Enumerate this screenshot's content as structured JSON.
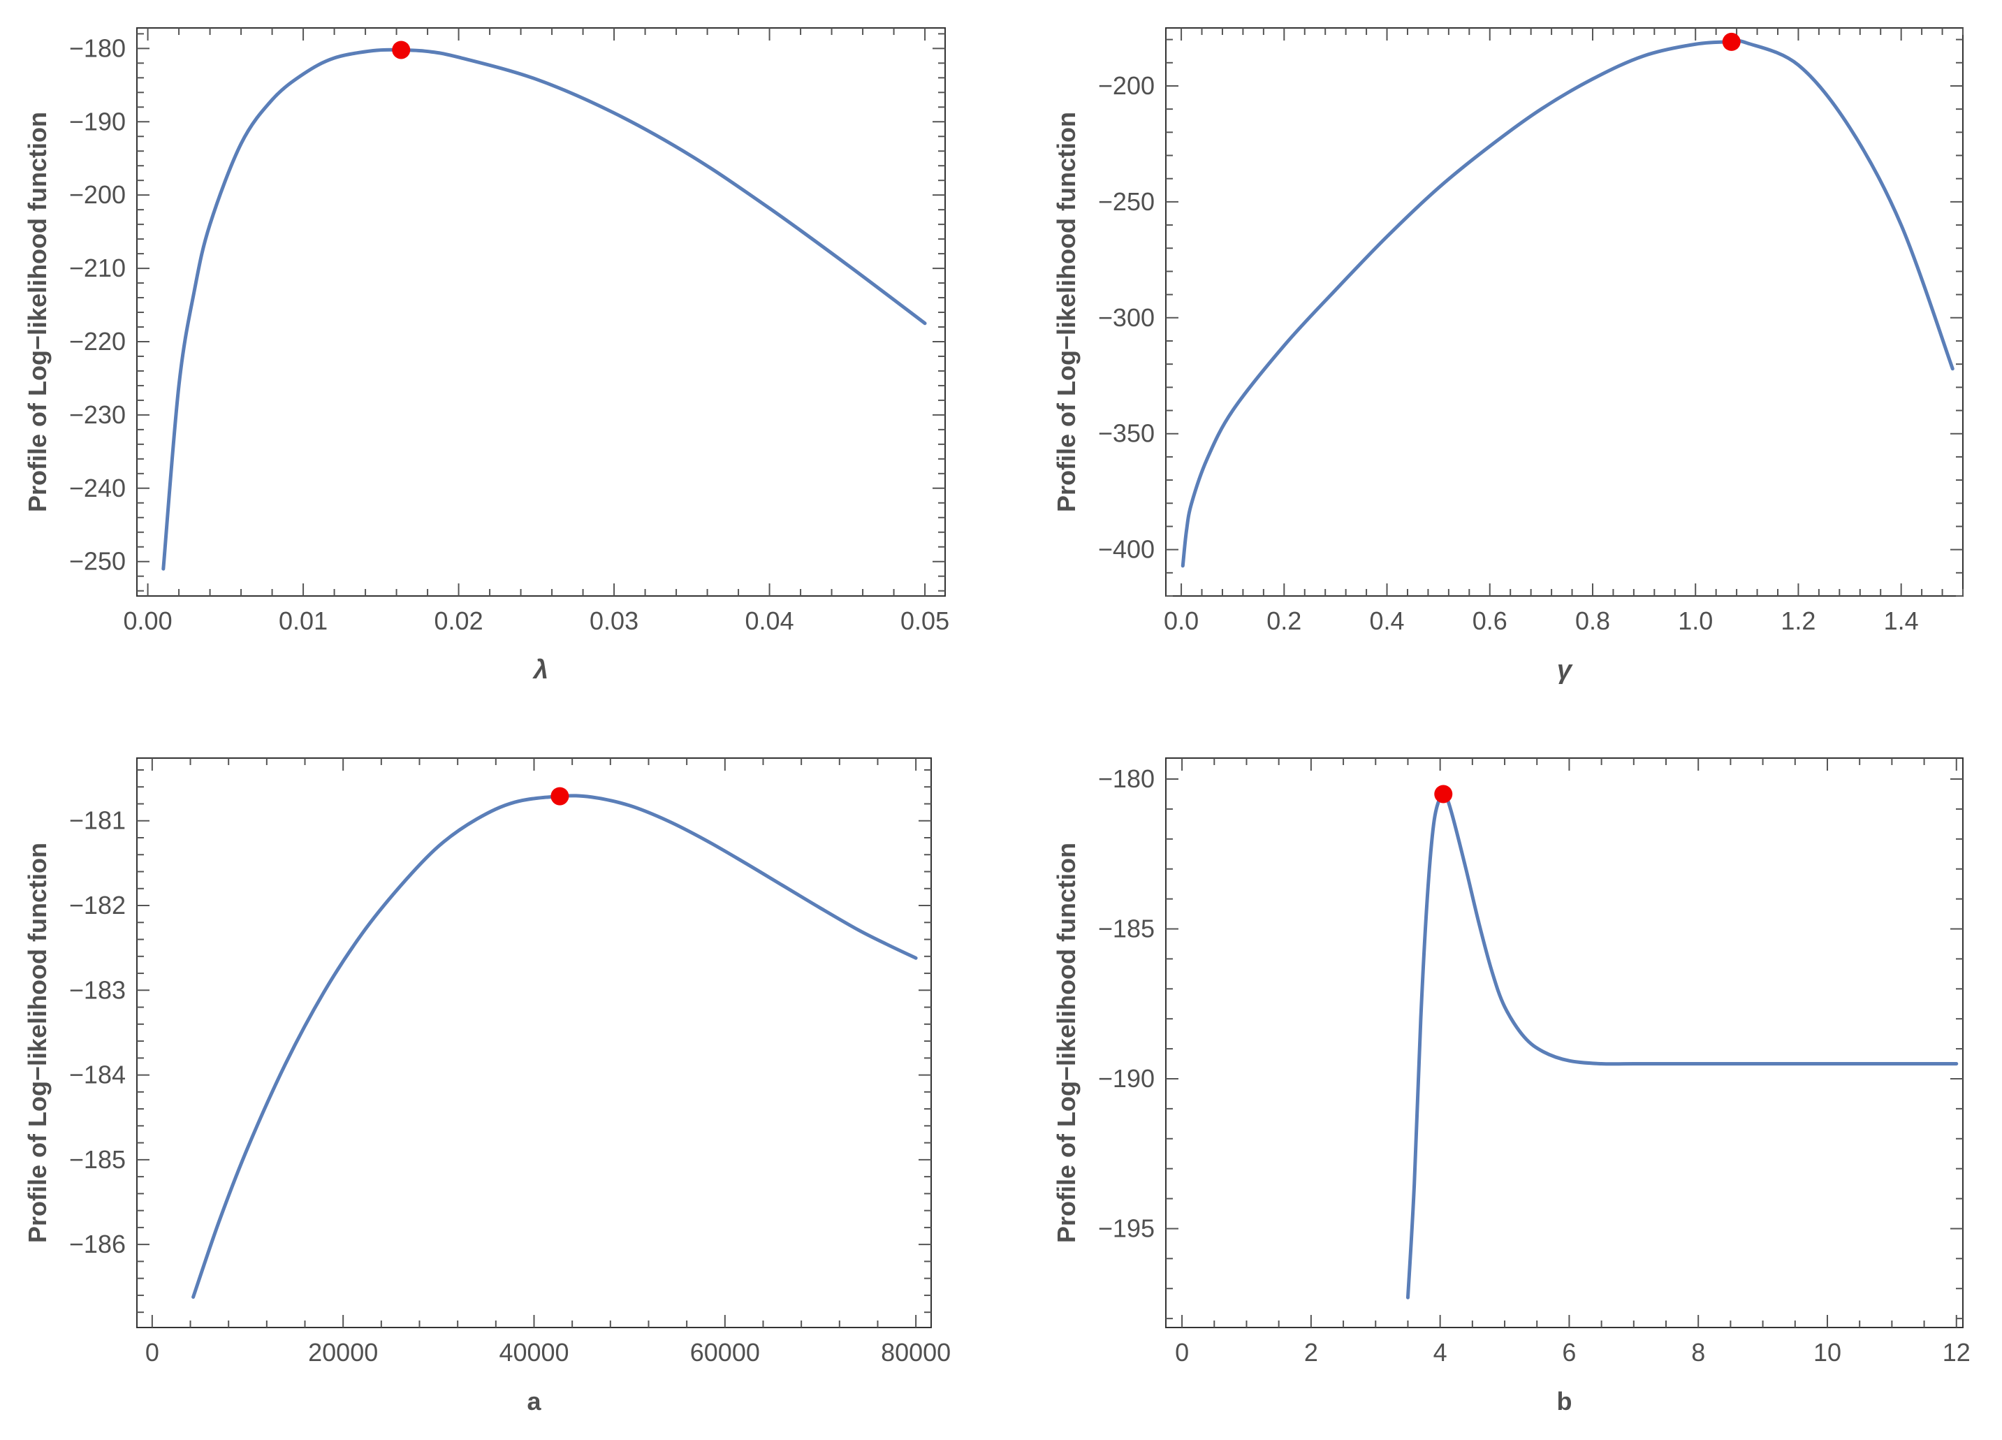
{
  "colors": {
    "curve": "#5A7EB8",
    "marker": "#F00000",
    "frame": "#333333",
    "text": "#505050"
  },
  "chart_data": [
    {
      "type": "line",
      "xlabel": "λ",
      "ylabel": "Profile of Log-likelihood function",
      "x_ticks": [
        "0.00",
        "0.01",
        "0.02",
        "0.03",
        "0.04",
        "0.05"
      ],
      "y_ticks": [
        "-180",
        "-190",
        "-200",
        "-210",
        "-220",
        "-230",
        "-240",
        "-250"
      ],
      "xlim": [
        -0.0007,
        0.0513
      ],
      "ylim": [
        -254.7,
        -177.2
      ],
      "x_tick_values": [
        0,
        0.01,
        0.02,
        0.03,
        0.04,
        0.05
      ],
      "y_tick_values": [
        -180,
        -190,
        -200,
        -210,
        -220,
        -230,
        -240,
        -250
      ],
      "x_minor": 0.002,
      "y_minor": 2,
      "series": [
        {
          "x": [
            0.001,
            0.002,
            0.003,
            0.004,
            0.006,
            0.008,
            0.01,
            0.012,
            0.0145,
            0.0163,
            0.018,
            0.02,
            0.025,
            0.03,
            0.035,
            0.04,
            0.045,
            0.05
          ],
          "y": [
            -251,
            -226,
            -213,
            -204,
            -193,
            -187,
            -183.5,
            -181.3,
            -180.3,
            -180.2,
            -180.4,
            -181.2,
            -184.2,
            -188.8,
            -194.7,
            -201.8,
            -209.5,
            -217.5
          ]
        }
      ],
      "marker": {
        "x": 0.0163,
        "y": -180.2
      }
    },
    {
      "type": "line",
      "xlabel": "γ",
      "ylabel": "Profile of Log-likelihood function",
      "x_ticks": [
        "0.0",
        "0.2",
        "0.4",
        "0.6",
        "0.8",
        "1.0",
        "1.2",
        "1.4"
      ],
      "y_ticks": [
        "-200",
        "-250",
        "-300",
        "-350",
        "-400"
      ],
      "xlim": [
        -0.03,
        1.52
      ],
      "ylim": [
        -420,
        -175
      ],
      "x_tick_values": [
        0,
        0.2,
        0.4,
        0.6,
        0.8,
        1.0,
        1.2,
        1.4
      ],
      "y_tick_values": [
        -200,
        -250,
        -300,
        -350,
        -400
      ],
      "x_minor": 0.04,
      "y_minor": 10,
      "series": [
        {
          "x": [
            0.003,
            0.01,
            0.02,
            0.05,
            0.1,
            0.2,
            0.3,
            0.4,
            0.5,
            0.6,
            0.7,
            0.8,
            0.9,
            1.0,
            1.07,
            1.1,
            1.2,
            1.3,
            1.4,
            1.5
          ],
          "y": [
            -407,
            -392,
            -380,
            -361,
            -340,
            -312,
            -288,
            -265,
            -244,
            -226,
            -210,
            -197,
            -187,
            -182,
            -181,
            -181.5,
            -191,
            -218,
            -260,
            -322
          ]
        }
      ],
      "marker": {
        "x": 1.07,
        "y": -181
      }
    },
    {
      "type": "line",
      "xlabel": "a",
      "ylabel": "Profile of Log-likelihood function",
      "x_ticks": [
        "0",
        "20000",
        "40000",
        "60000",
        "80000"
      ],
      "y_ticks": [
        "-181",
        "-182",
        "-183",
        "-184",
        "-185",
        "-186"
      ],
      "xlim": [
        -1600,
        81600
      ],
      "ylim": [
        -186.98,
        -180.26
      ],
      "x_tick_values": [
        0,
        20000,
        40000,
        60000,
        80000
      ],
      "y_tick_values": [
        -181,
        -182,
        -183,
        -184,
        -185,
        -186
      ],
      "x_minor": 4000,
      "y_minor": 0.2,
      "series": [
        {
          "x": [
            4300,
            7000,
            10000,
            14000,
            18000,
            22000,
            26000,
            30000,
            34000,
            38000,
            42700,
            46000,
            50000,
            54000,
            58000,
            62000,
            66000,
            70000,
            74000,
            77000,
            80000
          ],
          "y": [
            -186.62,
            -185.73,
            -184.86,
            -183.86,
            -183.02,
            -182.33,
            -181.77,
            -181.3,
            -180.98,
            -180.78,
            -180.71,
            -180.72,
            -180.82,
            -181.0,
            -181.23,
            -181.49,
            -181.76,
            -182.03,
            -182.29,
            -182.46,
            -182.62
          ]
        }
      ],
      "marker": {
        "x": 42700,
        "y": -180.71
      }
    },
    {
      "type": "line",
      "xlabel": "b",
      "ylabel": "Profile of Log-likelihood function",
      "x_ticks": [
        "0",
        "2",
        "4",
        "6",
        "8",
        "10",
        "12"
      ],
      "y_ticks": [
        "-180",
        "-185",
        "-190",
        "-195"
      ],
      "xlim": [
        -0.25,
        12.1
      ],
      "ylim": [
        -198.3,
        -179.3
      ],
      "x_tick_values": [
        0,
        2,
        4,
        6,
        8,
        10,
        12
      ],
      "y_tick_values": [
        -180,
        -185,
        -190,
        -195
      ],
      "x_minor": 0.5,
      "y_minor": 1,
      "series": [
        {
          "x": [
            3.5,
            3.6,
            3.7,
            3.8,
            3.9,
            4.0,
            4.05,
            4.1,
            4.2,
            4.4,
            4.6,
            4.8,
            5.0,
            5.3,
            5.6,
            6.0,
            6.5,
            7.0,
            8.0,
            10.0,
            12.0
          ],
          "y": [
            -197.3,
            -193.5,
            -188,
            -184,
            -181.5,
            -180.6,
            -180.5,
            -180.6,
            -181.3,
            -183,
            -184.8,
            -186.4,
            -187.6,
            -188.6,
            -189.1,
            -189.4,
            -189.5,
            -189.5,
            -189.5,
            -189.5,
            -189.5
          ]
        }
      ],
      "marker": {
        "x": 4.05,
        "y": -180.5
      }
    }
  ]
}
